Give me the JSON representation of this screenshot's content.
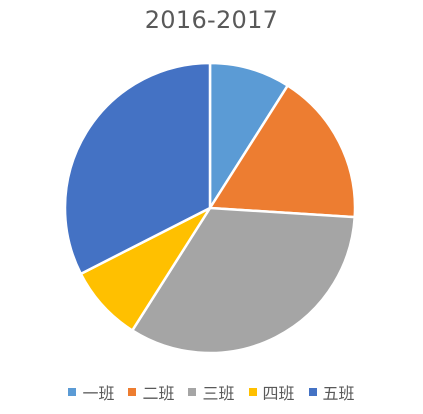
{
  "chart_data": {
    "type": "pie",
    "title": "2016-2017",
    "categories": [
      "一班",
      "二班",
      "三班",
      "四班",
      "五班"
    ],
    "values": [
      9,
      17,
      33,
      8.5,
      32.5
    ],
    "colors": [
      "#5B9BD5",
      "#ED7D31",
      "#A5A5A5",
      "#FFC000",
      "#4472C4"
    ],
    "start_angle_deg": 0,
    "direction": "clockwise",
    "legend_position": "bottom"
  }
}
